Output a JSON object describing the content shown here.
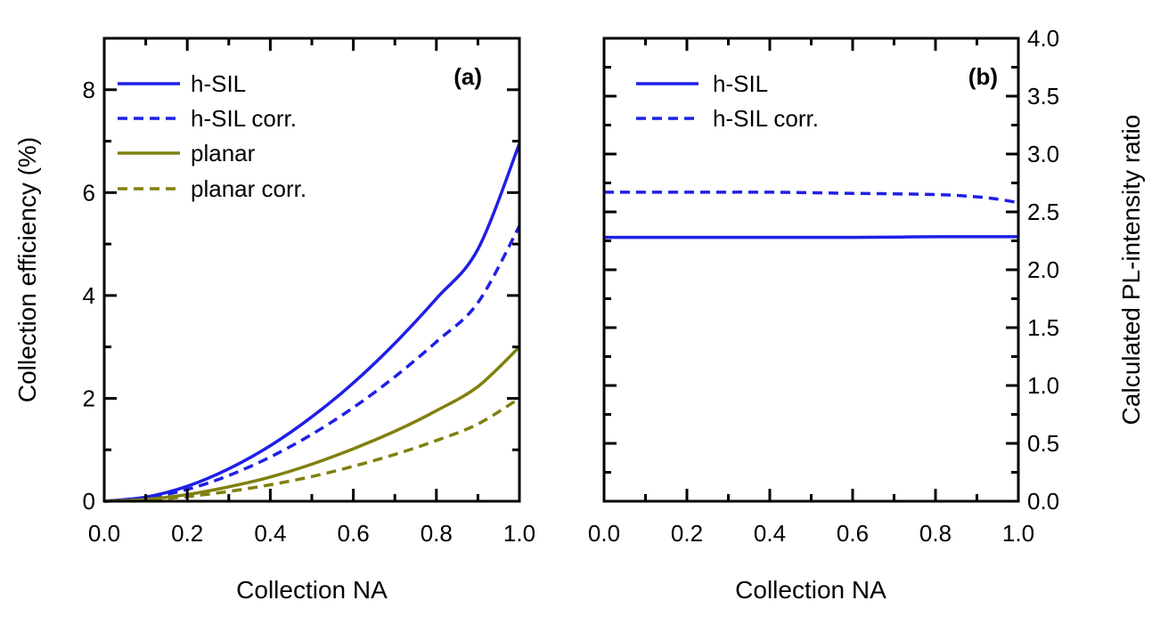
{
  "colors": {
    "blue": "#1f1fe6",
    "olive": "#808010",
    "axis": "#000000"
  },
  "chart_data": [
    {
      "type": "line",
      "panel_label": "(a)",
      "xlabel": "Collection NA",
      "ylabel": "Collection efficiency (%)",
      "xlim": [
        0,
        1
      ],
      "ylim": [
        0,
        9
      ],
      "xticks": [
        0.0,
        0.2,
        0.4,
        0.6,
        0.8,
        1.0
      ],
      "xtick_labels": [
        "0.0",
        "0.2",
        "0.4",
        "0.6",
        "0.8",
        "1.0"
      ],
      "yticks": [
        0,
        2,
        4,
        6,
        8
      ],
      "ytick_labels": [
        "0",
        "2",
        "4",
        "6",
        "8"
      ],
      "legend_position": "top-left",
      "series": [
        {
          "name": "h-SIL",
          "style": "solid",
          "color": "#1f1fe6",
          "x": [
            0,
            0.1,
            0.2,
            0.3,
            0.4,
            0.5,
            0.6,
            0.7,
            0.8,
            0.9,
            1.0
          ],
          "y": [
            0,
            0.08,
            0.29,
            0.63,
            1.08,
            1.64,
            2.3,
            3.07,
            3.94,
            4.9,
            6.95
          ]
        },
        {
          "name": "h-SIL corr.",
          "style": "dashed",
          "color": "#1f1fe6",
          "x": [
            0,
            0.1,
            0.2,
            0.3,
            0.4,
            0.5,
            0.6,
            0.7,
            0.8,
            0.9,
            1.0
          ],
          "y": [
            0,
            0.06,
            0.23,
            0.5,
            0.86,
            1.3,
            1.82,
            2.42,
            3.1,
            3.86,
            5.35
          ]
        },
        {
          "name": "planar",
          "style": "solid",
          "color": "#808010",
          "x": [
            0,
            0.1,
            0.2,
            0.3,
            0.4,
            0.5,
            0.6,
            0.7,
            0.8,
            0.9,
            1.0
          ],
          "y": [
            0,
            0.035,
            0.13,
            0.28,
            0.47,
            0.72,
            1.02,
            1.36,
            1.76,
            2.23,
            3.0
          ]
        },
        {
          "name": "planar corr.",
          "style": "dashed",
          "color": "#808010",
          "x": [
            0,
            0.1,
            0.2,
            0.3,
            0.4,
            0.5,
            0.6,
            0.7,
            0.8,
            0.9,
            1.0
          ],
          "y": [
            0,
            0.025,
            0.09,
            0.19,
            0.32,
            0.48,
            0.68,
            0.91,
            1.18,
            1.5,
            2.0
          ]
        }
      ]
    },
    {
      "type": "line",
      "panel_label": "(b)",
      "xlabel": "Collection NA",
      "ylabel": "Calculated PL-intensity ratio",
      "xlim": [
        0,
        1
      ],
      "ylim": [
        0,
        4
      ],
      "xticks": [
        0.0,
        0.2,
        0.4,
        0.6,
        0.8,
        1.0
      ],
      "xtick_labels": [
        "0.0",
        "0.2",
        "0.4",
        "0.6",
        "0.8",
        "1.0"
      ],
      "yticks": [
        0.0,
        0.5,
        1.0,
        1.5,
        2.0,
        2.5,
        3.0,
        3.5,
        4.0
      ],
      "ytick_labels": [
        "0.0",
        "0.5",
        "1.0",
        "1.5",
        "2.0",
        "2.5",
        "3.0",
        "3.5",
        "4.0"
      ],
      "legend_position": "top-left",
      "series": [
        {
          "name": "h-SIL",
          "style": "solid",
          "color": "#1f1fe6",
          "x": [
            0,
            0.2,
            0.4,
            0.6,
            0.8,
            1.0
          ],
          "y": [
            2.28,
            2.28,
            2.28,
            2.28,
            2.285,
            2.285
          ]
        },
        {
          "name": "h-SIL corr.",
          "style": "dashed",
          "color": "#1f1fe6",
          "x": [
            0,
            0.2,
            0.4,
            0.6,
            0.8,
            0.9,
            0.95,
            1.0
          ],
          "y": [
            2.67,
            2.67,
            2.67,
            2.66,
            2.65,
            2.63,
            2.61,
            2.58
          ]
        }
      ]
    }
  ]
}
